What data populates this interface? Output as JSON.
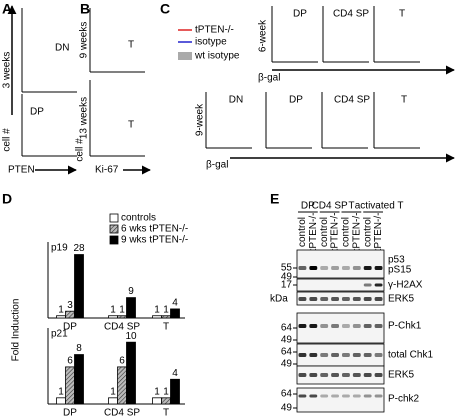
{
  "panel_labels": [
    "A",
    "B",
    "C",
    "D",
    "E"
  ],
  "panel_a": {
    "populations": [
      "DN",
      "DP"
    ],
    "time": "3 weeks",
    "y_label": "cell #",
    "x_label": "PTEN"
  },
  "panel_b": {
    "times": [
      "9 weeks",
      "13 weeks"
    ],
    "populations": [
      "T",
      "T"
    ],
    "y_label": "cell #",
    "x_label": "Ki-67"
  },
  "panel_c": {
    "legend": [
      "tPTEN-/-",
      "isotype",
      "wt isotype"
    ],
    "times": [
      "6-week",
      "9-week"
    ],
    "top_populations": [
      "DP",
      "CD4 SP",
      "T"
    ],
    "bottom_populations": [
      "DN",
      "DP",
      "CD4 SP",
      "T"
    ],
    "x_label": "β-gal"
  },
  "chart_data": [
    {
      "type": "bar",
      "title": "p19",
      "y_label": "Fold Induction",
      "categories": [
        "DP",
        "CD4 SP",
        "T"
      ],
      "series": [
        {
          "name": "controls",
          "color": "#ffffff",
          "values": [
            1,
            1,
            1
          ]
        },
        {
          "name": "6 wks tPTEN-/-",
          "color": "#9a9a9a",
          "values": [
            3,
            1,
            1
          ]
        },
        {
          "name": "9 wks tPTEN-/-",
          "color": "#000000",
          "values": [
            28,
            9,
            4
          ]
        }
      ],
      "ylim": [
        0,
        30
      ]
    },
    {
      "type": "bar",
      "title": "p21",
      "categories": [
        "DP",
        "CD4 SP",
        "T"
      ],
      "series": [
        {
          "color": "#ffffff",
          "values": [
            1,
            1,
            1
          ]
        },
        {
          "color": "#9a9a9a",
          "values": [
            6,
            6,
            1
          ]
        },
        {
          "color": "#000000",
          "values": [
            8,
            10,
            4
          ]
        }
      ],
      "ylim": [
        0,
        11
      ]
    }
  ],
  "blot": {
    "groups": [
      "DP",
      "CD4 SP",
      "T",
      "activated T"
    ],
    "lanes": [
      "control",
      "tPTEN-/-",
      "control",
      "tPTEN-/-",
      "control",
      "tPTEN-/-",
      "control",
      "tPTEN-/-"
    ],
    "kda": "kDa",
    "rows": [
      "p53",
      "pS15",
      "γ-H2AX",
      "ERK5",
      "P-Chk1",
      "total Chk1",
      "ERK5",
      "P-chk2"
    ],
    "markers": [
      55,
      49,
      17,
      64,
      49,
      64,
      49,
      64,
      49
    ]
  }
}
